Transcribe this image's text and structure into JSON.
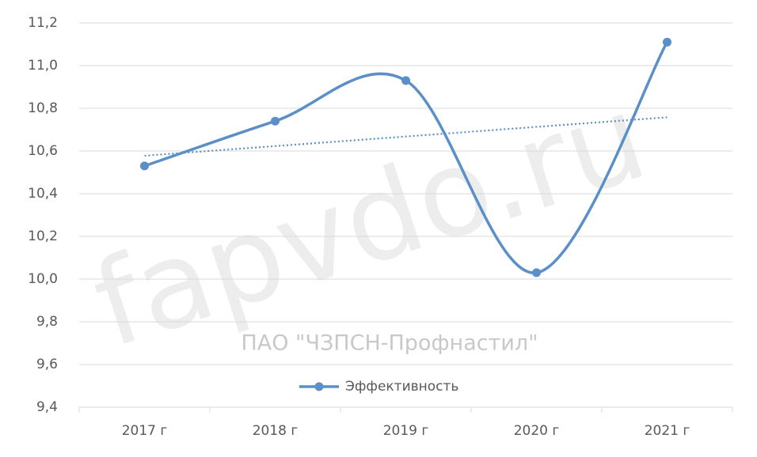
{
  "chart_data": {
    "type": "line",
    "title": "ПАО \"ЧЗПСН-Профнастил\"",
    "watermark": "fapvdo.ru",
    "categories": [
      "2017 г",
      "2018 г",
      "2019 г",
      "2020 г",
      "2021 г"
    ],
    "series": [
      {
        "name": "Эффективность",
        "color": "#5b8fc7",
        "values": [
          10.53,
          10.74,
          10.93,
          10.03,
          11.11
        ]
      }
    ],
    "ylim": [
      9.4,
      11.2
    ],
    "yticks": [
      {
        "value": 9.4,
        "label": "9,4"
      },
      {
        "value": 9.6,
        "label": "9,6"
      },
      {
        "value": 9.8,
        "label": "9,8"
      },
      {
        "value": 10.0,
        "label": "10,0"
      },
      {
        "value": 10.2,
        "label": "10,2"
      },
      {
        "value": 10.4,
        "label": "10,4"
      },
      {
        "value": 10.6,
        "label": "10,6"
      },
      {
        "value": 10.8,
        "label": "10,8"
      },
      {
        "value": 11.0,
        "label": "11,0"
      },
      {
        "value": 11.2,
        "label": "11,2"
      }
    ],
    "grid": true,
    "smooth": true,
    "trendline": true
  }
}
